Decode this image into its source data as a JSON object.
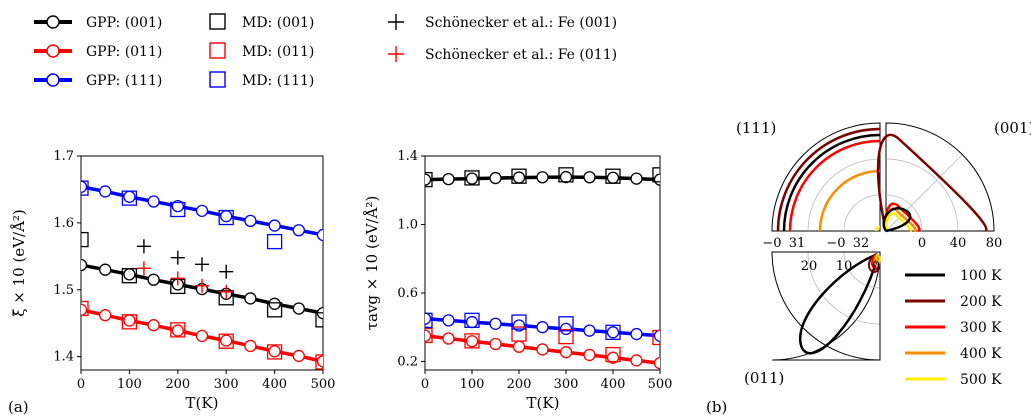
{
  "legend": {
    "items": [
      {
        "label": "GPP: (001)",
        "color": "#000000",
        "style": "line-circle"
      },
      {
        "label": "GPP: (011)",
        "color": "#ff0000",
        "style": "line-circle"
      },
      {
        "label": "GPP: (111)",
        "color": "#0000ff",
        "style": "line-circle"
      },
      {
        "label": "MD: (001)",
        "color": "#000000",
        "style": "square"
      },
      {
        "label": "MD: (011)",
        "color": "#ff0000",
        "style": "square"
      },
      {
        "label": "MD: (111)",
        "color": "#0000ff",
        "style": "square"
      },
      {
        "label": "Schönecker et al.: Fe (001)",
        "color": "#000000",
        "style": "plus"
      },
      {
        "label": "Schönecker et al.: Fe (011)",
        "color": "#ff0000",
        "style": "plus"
      }
    ]
  },
  "panel_labels": {
    "a": "(a)",
    "b": "(b)"
  },
  "chart_data": [
    {
      "type": "line",
      "id": "xi",
      "xlabel": "T(K)",
      "ylabel": "ξ̄ × 10 (eV/Å²)",
      "xlim": [
        0,
        500
      ],
      "ylim": [
        1.38,
        1.7
      ],
      "xticks": [
        0,
        100,
        200,
        300,
        400,
        500
      ],
      "yticks": [
        1.4,
        1.5,
        1.6,
        1.7
      ],
      "gpp": [
        {
          "color": "#000000",
          "x": [
            0,
            50,
            100,
            150,
            200,
            250,
            300,
            350,
            400,
            450,
            500
          ],
          "y": [
            1.537,
            1.53,
            1.523,
            1.515,
            1.508,
            1.501,
            1.494,
            1.487,
            1.479,
            1.472,
            1.465
          ]
        },
        {
          "color": "#ff0000",
          "x": [
            0,
            50,
            100,
            150,
            200,
            250,
            300,
            350,
            400,
            450,
            500
          ],
          "y": [
            1.47,
            1.462,
            1.454,
            1.447,
            1.439,
            1.431,
            1.424,
            1.416,
            1.408,
            1.401,
            1.393
          ]
        },
        {
          "color": "#0000ff",
          "x": [
            0,
            50,
            100,
            150,
            200,
            250,
            300,
            350,
            400,
            450,
            500
          ],
          "y": [
            1.654,
            1.647,
            1.639,
            1.632,
            1.625,
            1.618,
            1.61,
            1.603,
            1.596,
            1.589,
            1.582
          ]
        }
      ],
      "md": [
        {
          "color": "#000000",
          "x": [
            0,
            100,
            200,
            300,
            400,
            500
          ],
          "y": [
            1.575,
            1.521,
            1.505,
            1.488,
            1.47,
            1.455
          ]
        },
        {
          "color": "#ff0000",
          "x": [
            0,
            100,
            200,
            300,
            400,
            500
          ],
          "y": [
            1.472,
            1.452,
            1.44,
            1.423,
            1.407,
            1.392
          ]
        },
        {
          "color": "#0000ff",
          "x": [
            0,
            100,
            200,
            300,
            400
          ],
          "y": [
            1.652,
            1.637,
            1.62,
            1.608,
            1.572
          ]
        }
      ],
      "reference": [
        {
          "color": "#000000",
          "x": [
            130,
            200,
            250,
            300
          ],
          "y": [
            1.565,
            1.548,
            1.538,
            1.527
          ]
        },
        {
          "color": "#ff0000",
          "x": [
            130,
            200,
            250,
            300
          ],
          "y": [
            1.532,
            1.517,
            1.506,
            1.497
          ]
        }
      ]
    },
    {
      "type": "line",
      "id": "tau",
      "xlabel": "T(K)",
      "ylabel": "τavg × 10 (eV/Å²)",
      "xlim": [
        0,
        500
      ],
      "ylim": [
        0.15,
        1.4
      ],
      "xticks": [
        0,
        100,
        200,
        300,
        400,
        500
      ],
      "yticks": [
        0.2,
        0.6,
        1.0,
        1.4
      ],
      "gpp": [
        {
          "color": "#000000",
          "x": [
            0,
            50,
            100,
            150,
            200,
            250,
            300,
            350,
            400,
            450,
            500
          ],
          "y": [
            1.262,
            1.265,
            1.268,
            1.271,
            1.274,
            1.276,
            1.277,
            1.276,
            1.273,
            1.268,
            1.262
          ]
        },
        {
          "color": "#ff0000",
          "x": [
            0,
            50,
            100,
            150,
            200,
            250,
            300,
            350,
            400,
            450,
            500
          ],
          "y": [
            0.35,
            0.334,
            0.318,
            0.302,
            0.286,
            0.27,
            0.254,
            0.238,
            0.222,
            0.206,
            0.19
          ]
        },
        {
          "color": "#0000ff",
          "x": [
            0,
            50,
            100,
            150,
            200,
            250,
            300,
            350,
            400,
            450,
            500
          ],
          "y": [
            0.45,
            0.44,
            0.43,
            0.42,
            0.41,
            0.4,
            0.39,
            0.38,
            0.37,
            0.36,
            0.35
          ]
        }
      ],
      "md": [
        {
          "color": "#000000",
          "x": [
            0,
            100,
            200,
            300,
            400,
            500
          ],
          "y": [
            1.262,
            1.272,
            1.282,
            1.29,
            1.282,
            1.29
          ]
        },
        {
          "color": "#ff0000",
          "x": [
            0,
            100,
            200,
            300,
            400,
            500
          ],
          "y": [
            0.352,
            0.32,
            0.36,
            0.345,
            0.24,
            0.34
          ]
        },
        {
          "color": "#0000ff",
          "x": [
            0,
            100,
            200,
            300,
            400
          ],
          "y": [
            0.44,
            0.44,
            0.43,
            0.42,
            0.37
          ]
        }
      ]
    },
    {
      "type": "polar",
      "id": "polar",
      "panels": [
        {
          "label": "(111)",
          "ticks": [
            "−0",
            "31",
            "−0",
            "32"
          ]
        },
        {
          "label": "(001)",
          "ticks": [
            "0",
            "40",
            "80"
          ]
        },
        {
          "label": "(011)",
          "ticks": [
            "20",
            "10",
            "0"
          ]
        }
      ],
      "series": [
        {
          "name": "100 K",
          "color": "#000000"
        },
        {
          "name": "200 K",
          "color": "#7a0000"
        },
        {
          "name": "300 K",
          "color": "#ff0000"
        },
        {
          "name": "400 K",
          "color": "#ff8c00"
        },
        {
          "name": "500 K",
          "color": "#ffee00"
        }
      ]
    }
  ]
}
